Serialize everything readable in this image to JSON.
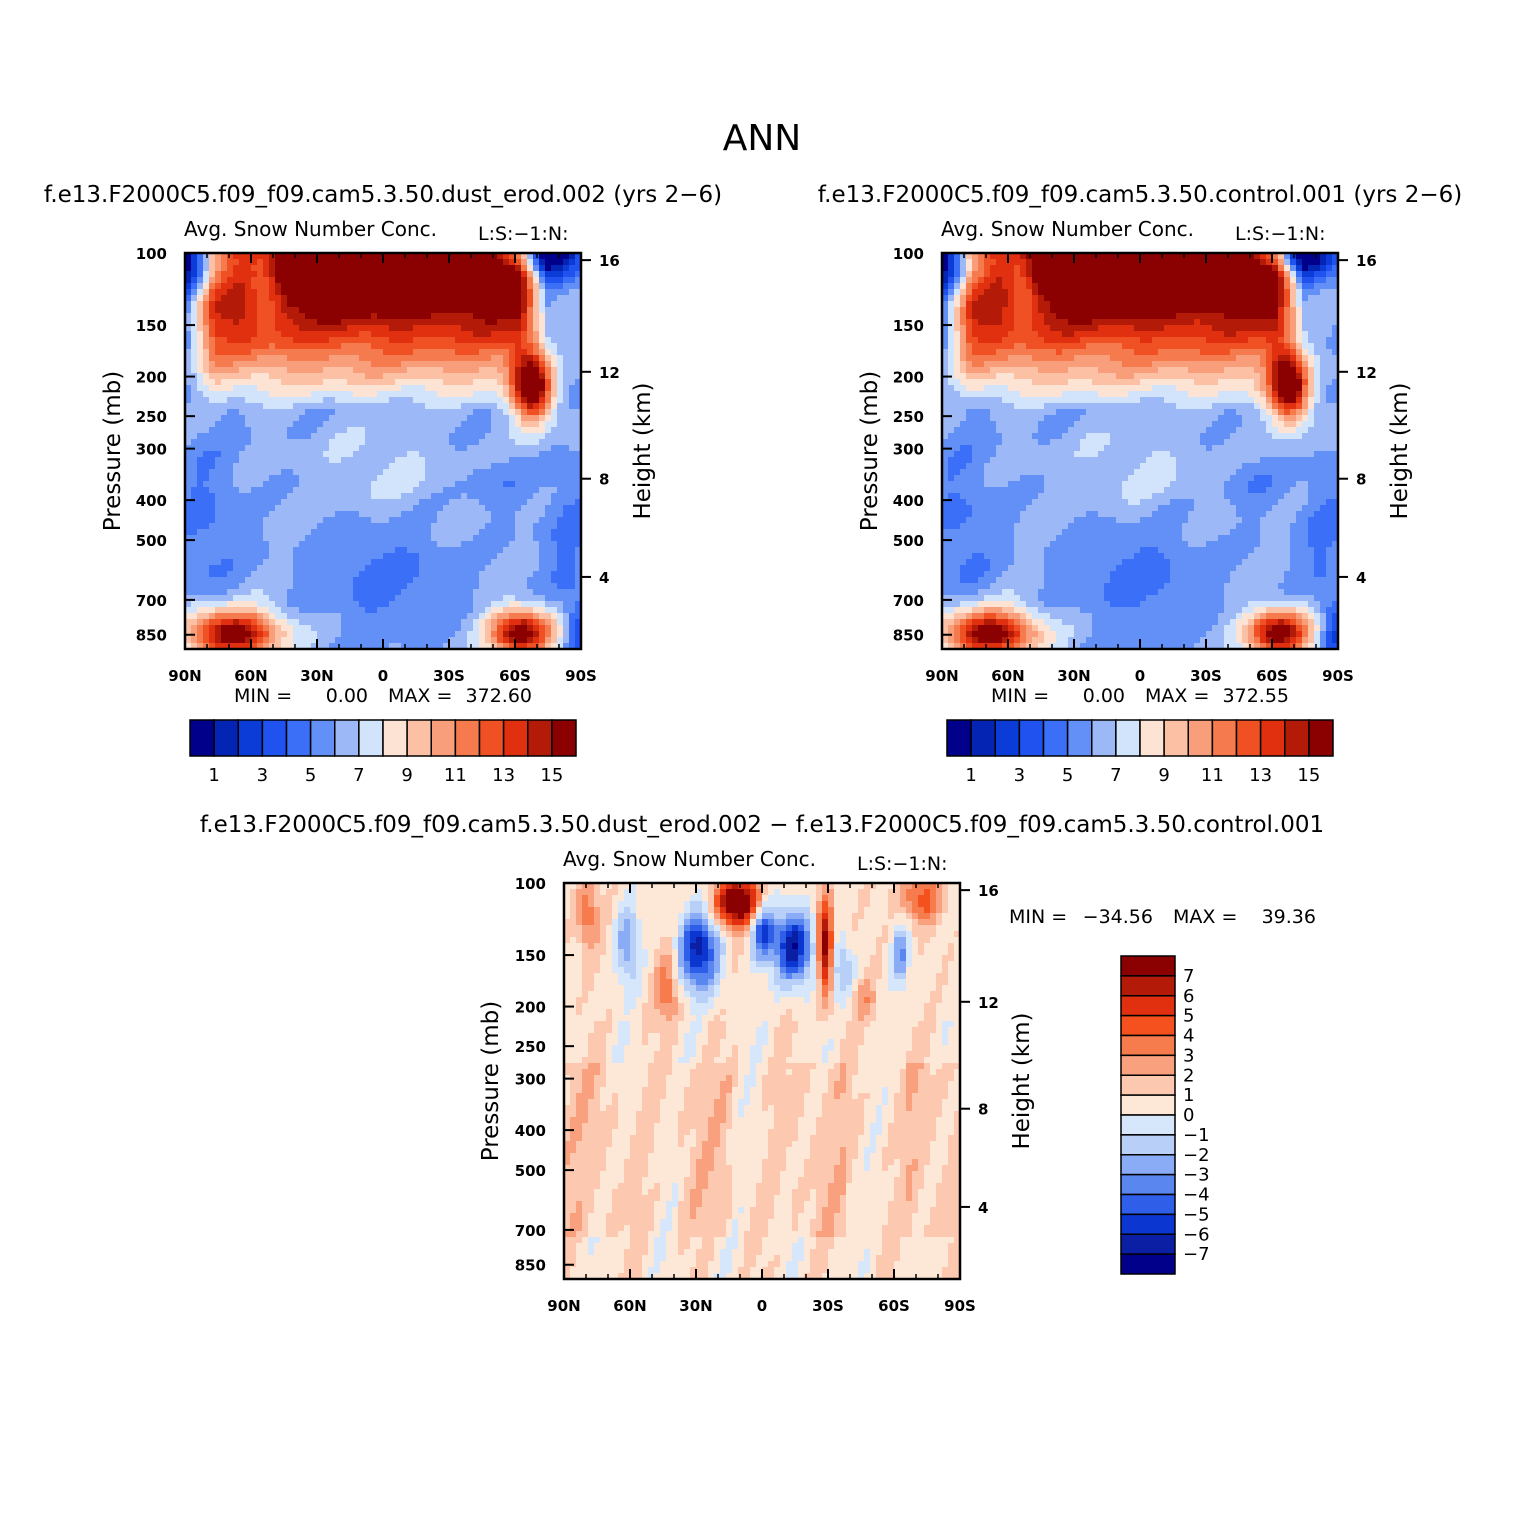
{
  "page": {
    "title": "ANN"
  },
  "chart_data": [
    {
      "type": "heatmap",
      "case_title": "f.e13.F2000C5.f09_f09.cam5.3.50.dust_erod.002 (yrs 2−6)",
      "variable": "Avg. Snow Number Conc.",
      "units_tag": "L:S:−1:N:",
      "ylabel": "Pressure (mb)",
      "y2label": "Height (km)",
      "yticks": [
        "100",
        "150",
        "200",
        "250",
        "300",
        "400",
        "500",
        "700",
        "850"
      ],
      "y2ticks": [
        "16",
        "12",
        "8",
        "4"
      ],
      "xticks": [
        "90N",
        "60N",
        "30N",
        "0",
        "30S",
        "60S",
        "90S"
      ],
      "min_label": "MIN =",
      "min_value": "0.00",
      "max_label": "MAX =",
      "max_value": "372.60",
      "legend_labels": [
        "1",
        "3",
        "5",
        "7",
        "9",
        "11",
        "13",
        "15"
      ],
      "colorbar_colors": [
        "#00008b",
        "#0424b4",
        "#0c3cd8",
        "#1f52ef",
        "#3b6ff7",
        "#6290f7",
        "#9db8f7",
        "#d2e4fb",
        "#fde3d3",
        "#fcc0a4",
        "#f99e7a",
        "#f57a4d",
        "#ef5125",
        "#e03010",
        "#b31b08",
        "#8b0000"
      ],
      "field": "snow_control"
    },
    {
      "type": "heatmap",
      "case_title": "f.e13.F2000C5.f09_f09.cam5.3.50.control.001 (yrs 2−6)",
      "variable": "Avg. Snow Number Conc.",
      "units_tag": "L:S:−1:N:",
      "ylabel": "Pressure (mb)",
      "y2label": "Height (km)",
      "yticks": [
        "100",
        "150",
        "200",
        "250",
        "300",
        "400",
        "500",
        "700",
        "850"
      ],
      "y2ticks": [
        "16",
        "12",
        "8",
        "4"
      ],
      "xticks": [
        "90N",
        "60N",
        "30N",
        "0",
        "30S",
        "60S",
        "90S"
      ],
      "min_label": "MIN =",
      "min_value": "0.00",
      "max_label": "MAX =",
      "max_value": "372.55",
      "legend_labels": [
        "1",
        "3",
        "5",
        "7",
        "9",
        "11",
        "13",
        "15"
      ],
      "colorbar_colors": [
        "#00008b",
        "#0424b4",
        "#0c3cd8",
        "#1f52ef",
        "#3b6ff7",
        "#6290f7",
        "#9db8f7",
        "#d2e4fb",
        "#fde3d3",
        "#fcc0a4",
        "#f99e7a",
        "#f57a4d",
        "#ef5125",
        "#e03010",
        "#b31b08",
        "#8b0000"
      ],
      "field": "snow_control"
    },
    {
      "type": "heatmap",
      "case_title": "f.e13.F2000C5.f09_f09.cam5.3.50.dust_erod.002 − f.e13.F2000C5.f09_f09.cam5.3.50.control.001",
      "variable": "Avg. Snow Number Conc.",
      "units_tag": "L:S:−1:N:",
      "ylabel": "Pressure (mb)",
      "y2label": "Height (km)",
      "yticks": [
        "100",
        "150",
        "200",
        "250",
        "300",
        "400",
        "500",
        "700",
        "850"
      ],
      "y2ticks": [
        "16",
        "12",
        "8",
        "4"
      ],
      "xticks": [
        "90N",
        "60N",
        "30N",
        "0",
        "30S",
        "60S",
        "90S"
      ],
      "min_label": "MIN =",
      "min_value": "−34.56",
      "max_label": "MAX =",
      "max_value": "39.36",
      "legend_labels": [
        "7",
        "6",
        "5",
        "4",
        "3",
        "2",
        "1",
        "0",
        "−1",
        "−2",
        "−3",
        "−4",
        "−5",
        "−6",
        "−7"
      ],
      "colorbar_colors": [
        "#8b0000",
        "#b31b08",
        "#e03010",
        "#f5511f",
        "#f67c4d",
        "#f9a07e",
        "#fcc9b0",
        "#fde7d6",
        "#d7e7fb",
        "#b8cff8",
        "#8aacf6",
        "#5a86f0",
        "#2f5ee8",
        "#0c36d0",
        "#0a1fa3",
        "#00008b"
      ],
      "field": "snow_difference"
    }
  ]
}
